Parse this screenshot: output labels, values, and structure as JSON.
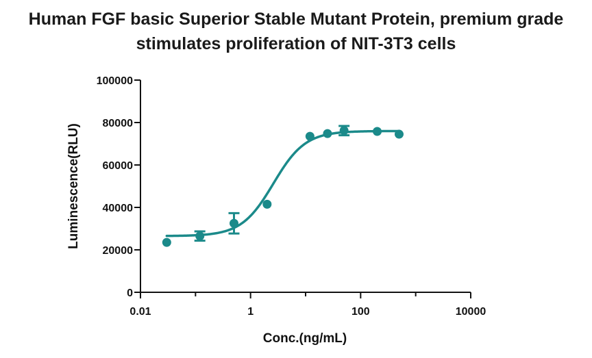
{
  "chart_data": {
    "type": "scatter",
    "title_line1": "Human FGF basic Superior Stable Mutant Protein, premium grade",
    "title_line2": "stimulates proliferation of NIT-3T3 cells",
    "xlabel": "Conc.(ng/mL)",
    "ylabel": "Luminescence(RLU)",
    "x_scale": "log",
    "xlim": [
      0.01,
      10000
    ],
    "ylim": [
      0,
      100000
    ],
    "x_ticks": [
      {
        "value": 0.01,
        "label": "0.01"
      },
      {
        "value": 1,
        "label": "1"
      },
      {
        "value": 100,
        "label": "100"
      },
      {
        "value": 10000,
        "label": "10000"
      }
    ],
    "y_ticks": [
      {
        "value": 0,
        "label": "0"
      },
      {
        "value": 20000,
        "label": "20000"
      },
      {
        "value": 40000,
        "label": "40000"
      },
      {
        "value": 60000,
        "label": "60000"
      },
      {
        "value": 80000,
        "label": "80000"
      },
      {
        "value": 100000,
        "label": "100000"
      }
    ],
    "color": "#1b8a8a",
    "points": [
      {
        "x": 0.03,
        "y": 23500,
        "err": 0
      },
      {
        "x": 0.12,
        "y": 26500,
        "err": 2200
      },
      {
        "x": 0.5,
        "y": 32500,
        "err": 4800
      },
      {
        "x": 2.0,
        "y": 41500,
        "err": 0
      },
      {
        "x": 12,
        "y": 73500,
        "err": 0
      },
      {
        "x": 25,
        "y": 74800,
        "err": 0
      },
      {
        "x": 50,
        "y": 76200,
        "err": 2200
      },
      {
        "x": 200,
        "y": 75800,
        "err": 0
      },
      {
        "x": 500,
        "y": 74500,
        "err": 0
      }
    ],
    "fit_curve": {
      "model": "4PL",
      "bottom": 26500,
      "top": 76000,
      "ec50": 2.6,
      "hill": 1.5,
      "x_range": [
        0.03,
        500
      ]
    }
  }
}
